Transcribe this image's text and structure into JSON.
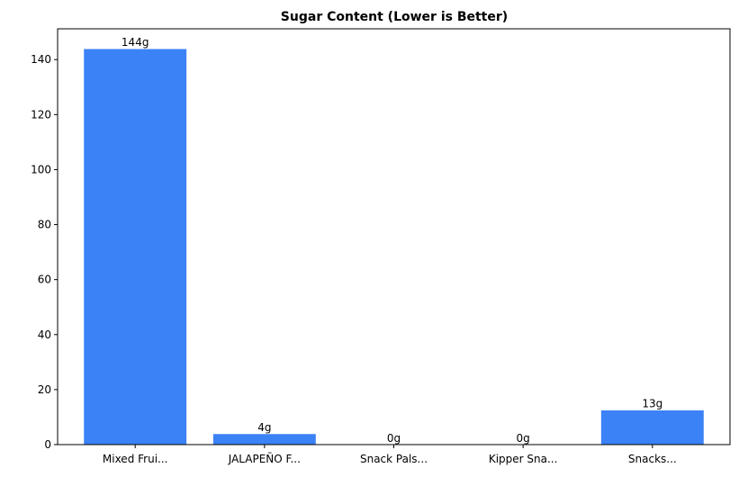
{
  "chart_data": {
    "type": "bar",
    "title": "Sugar Content (Lower is Better)",
    "xlabel": "",
    "ylabel": "",
    "categories": [
      "Mixed Frui...",
      "JALAPEÑO F...",
      "Snack Pals...",
      "Kipper Sna...",
      "Snacks..."
    ],
    "values": [
      144,
      4,
      0,
      0,
      12.6
    ],
    "data_labels": [
      "144g",
      "4g",
      "0g",
      "0g",
      "13g"
    ],
    "ylim": [
      0,
      151.2
    ],
    "yticks": [
      0,
      20,
      40,
      60,
      80,
      100,
      120,
      140
    ],
    "bar_color": "#3b82f6",
    "grid": false,
    "legend": "none"
  }
}
